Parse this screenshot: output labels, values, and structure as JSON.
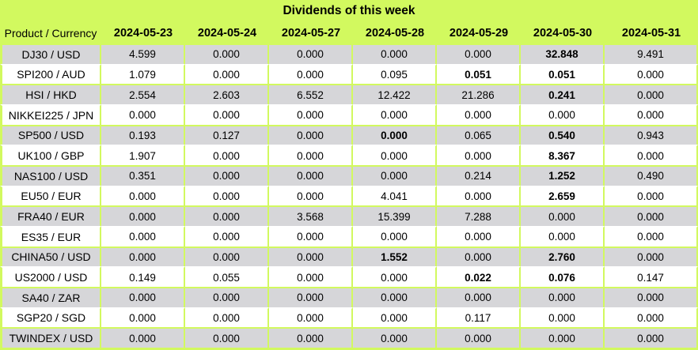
{
  "title": "Dividends of this week",
  "colors": {
    "accent_green": "#d2f95f",
    "row_gray": "#d6d6d9",
    "row_white": "#ffffff",
    "text": "#000000"
  },
  "chart_data": {
    "type": "table",
    "title": "Dividends of this week",
    "product_header": "Product / Currency",
    "date_headers": [
      "2024-05-23",
      "2024-05-24",
      "2024-05-27",
      "2024-05-28",
      "2024-05-29",
      "2024-05-30",
      "2024-05-31"
    ],
    "rows": [
      {
        "product": "DJ30 / USD",
        "values": [
          "4.599",
          "0.000",
          "0.000",
          "0.000",
          "0.000",
          "32.848",
          "9.491"
        ],
        "bold": [
          5
        ]
      },
      {
        "product": "SPI200 / AUD",
        "values": [
          "1.079",
          "0.000",
          "0.000",
          "0.095",
          "0.051",
          "0.051",
          "0.000"
        ],
        "bold": [
          4,
          5
        ]
      },
      {
        "product": "HSI / HKD",
        "values": [
          "2.554",
          "2.603",
          "6.552",
          "12.422",
          "21.286",
          "0.241",
          "0.000"
        ],
        "bold": [
          5
        ]
      },
      {
        "product": "NIKKEI225 / JPN",
        "values": [
          "0.000",
          "0.000",
          "0.000",
          "0.000",
          "0.000",
          "0.000",
          "0.000"
        ],
        "bold": []
      },
      {
        "product": "SP500 / USD",
        "values": [
          "0.193",
          "0.127",
          "0.000",
          "0.000",
          "0.065",
          "0.540",
          "0.943"
        ],
        "bold": [
          3,
          5
        ]
      },
      {
        "product": "UK100 / GBP",
        "values": [
          "1.907",
          "0.000",
          "0.000",
          "0.000",
          "0.000",
          "8.367",
          "0.000"
        ],
        "bold": [
          5
        ]
      },
      {
        "product": "NAS100 / USD",
        "values": [
          "0.351",
          "0.000",
          "0.000",
          "0.000",
          "0.214",
          "1.252",
          "0.490"
        ],
        "bold": [
          5
        ]
      },
      {
        "product": "EU50 / EUR",
        "values": [
          "0.000",
          "0.000",
          "0.000",
          "4.041",
          "0.000",
          "2.659",
          "0.000"
        ],
        "bold": [
          5
        ]
      },
      {
        "product": "FRA40 / EUR",
        "values": [
          "0.000",
          "0.000",
          "3.568",
          "15.399",
          "7.288",
          "0.000",
          "0.000"
        ],
        "bold": []
      },
      {
        "product": "ES35 / EUR",
        "values": [
          "0.000",
          "0.000",
          "0.000",
          "0.000",
          "0.000",
          "0.000",
          "0.000"
        ],
        "bold": []
      },
      {
        "product": "CHINA50 / USD",
        "values": [
          "0.000",
          "0.000",
          "0.000",
          "1.552",
          "0.000",
          "2.760",
          "0.000"
        ],
        "bold": [
          3,
          5
        ]
      },
      {
        "product": "US2000 / USD",
        "values": [
          "0.149",
          "0.055",
          "0.000",
          "0.000",
          "0.022",
          "0.076",
          "0.147"
        ],
        "bold": [
          4,
          5
        ]
      },
      {
        "product": "SA40 / ZAR",
        "values": [
          "0.000",
          "0.000",
          "0.000",
          "0.000",
          "0.000",
          "0.000",
          "0.000"
        ],
        "bold": []
      },
      {
        "product": "SGP20 / SGD",
        "values": [
          "0.000",
          "0.000",
          "0.000",
          "0.000",
          "0.117",
          "0.000",
          "0.000"
        ],
        "bold": []
      },
      {
        "product": "TWINDEX / USD",
        "values": [
          "0.000",
          "0.000",
          "0.000",
          "0.000",
          "0.000",
          "0.000",
          "0.000"
        ],
        "bold": []
      }
    ]
  }
}
